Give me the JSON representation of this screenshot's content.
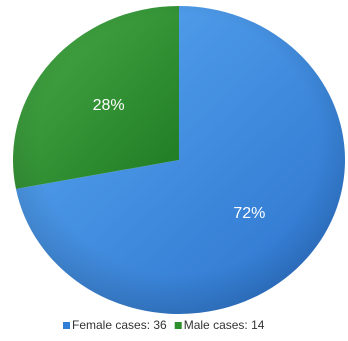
{
  "chart_data": {
    "type": "pie",
    "slices": [
      {
        "name": "Female cases",
        "value": 36,
        "percent_label": "72%",
        "legend_label": "Female cases: 36",
        "color": "#2f7fd6"
      },
      {
        "name": "Male cases",
        "value": 14,
        "percent_label": "28%",
        "legend_label": "Male cases: 14",
        "color": "#2c8f2c"
      }
    ],
    "start_angle_deg": 0,
    "direction": "clockwise",
    "legend_position": "bottom"
  }
}
